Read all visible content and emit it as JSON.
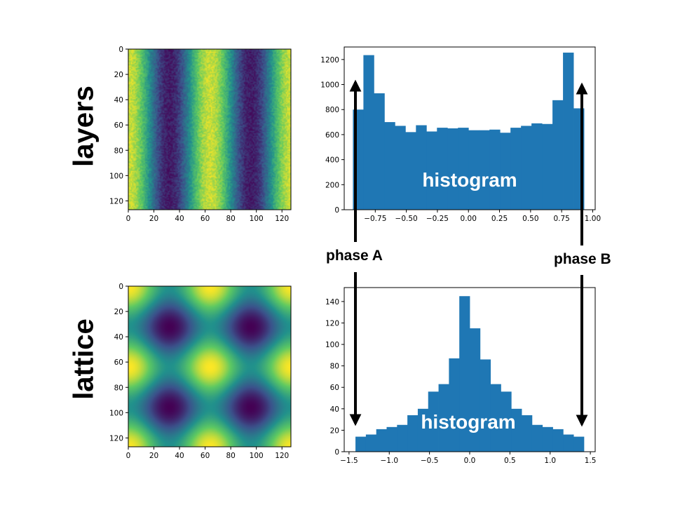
{
  "labels": {
    "row_top": "layers",
    "row_bottom": "lattice",
    "phase_a": "phase A",
    "phase_b": "phase B",
    "hist_top": "histogram",
    "hist_bottom": "histogram"
  },
  "colors": {
    "bar": "#1f77b4",
    "viridis": [
      "#440154",
      "#3b528b",
      "#21918c",
      "#5ec962",
      "#fde725"
    ]
  },
  "chart_data": [
    {
      "type": "heatmap",
      "name": "layers",
      "pattern": "vertical stripes cos(2*pi*x/64) with noise",
      "xticks": [
        0,
        20,
        40,
        60,
        80,
        100,
        120
      ],
      "yticks": [
        0,
        20,
        40,
        60,
        80,
        100,
        120
      ],
      "xlim": [
        0,
        127
      ],
      "ylim": [
        127,
        0
      ],
      "colormap": "viridis"
    },
    {
      "type": "bar",
      "name": "layers histogram",
      "bin_edges_range": [
        -0.93,
        0.93
      ],
      "values": [
        800,
        1235,
        930,
        700,
        670,
        620,
        675,
        625,
        655,
        650,
        655,
        635,
        635,
        640,
        615,
        655,
        670,
        690,
        685,
        875,
        1255,
        810
      ],
      "xticks": [
        "−0.75",
        "−0.50",
        "−0.25",
        "0.00",
        "0.25",
        "0.50",
        "0.75",
        "1.00"
      ],
      "xtick_values": [
        -0.75,
        -0.5,
        -0.25,
        0.0,
        0.25,
        0.5,
        0.75,
        1.0
      ],
      "yticks": [
        0,
        200,
        400,
        600,
        800,
        1000,
        1200
      ],
      "xlim": [
        -1.0,
        1.02
      ],
      "ylim": [
        0,
        1300
      ]
    },
    {
      "type": "heatmap",
      "name": "lattice",
      "pattern": "cos(2*pi*x/64) + cos(2*pi*y/64) lattice",
      "xticks": [
        0,
        20,
        40,
        60,
        80,
        100,
        120
      ],
      "yticks": [
        0,
        20,
        40,
        60,
        80,
        100,
        120
      ],
      "xlim": [
        0,
        127
      ],
      "ylim": [
        127,
        0
      ],
      "colormap": "viridis"
    },
    {
      "type": "bar",
      "name": "lattice histogram",
      "bin_edges_range": [
        -1.42,
        1.42
      ],
      "values": [
        14,
        16,
        21,
        23,
        25,
        34,
        40,
        56,
        63,
        87,
        145,
        115,
        86,
        63,
        56,
        40,
        34,
        25,
        23,
        21,
        16,
        14
      ],
      "xticks": [
        "−1.5",
        "−1.0",
        "−0.5",
        "0.0",
        "0.5",
        "1.0",
        "1.5"
      ],
      "xtick_values": [
        -1.5,
        -1.0,
        -0.5,
        0.0,
        0.5,
        1.0,
        1.5
      ],
      "yticks": [
        0,
        20,
        40,
        60,
        80,
        100,
        120,
        140
      ],
      "xlim": [
        -1.56,
        1.56
      ],
      "ylim": [
        0,
        153
      ]
    }
  ]
}
